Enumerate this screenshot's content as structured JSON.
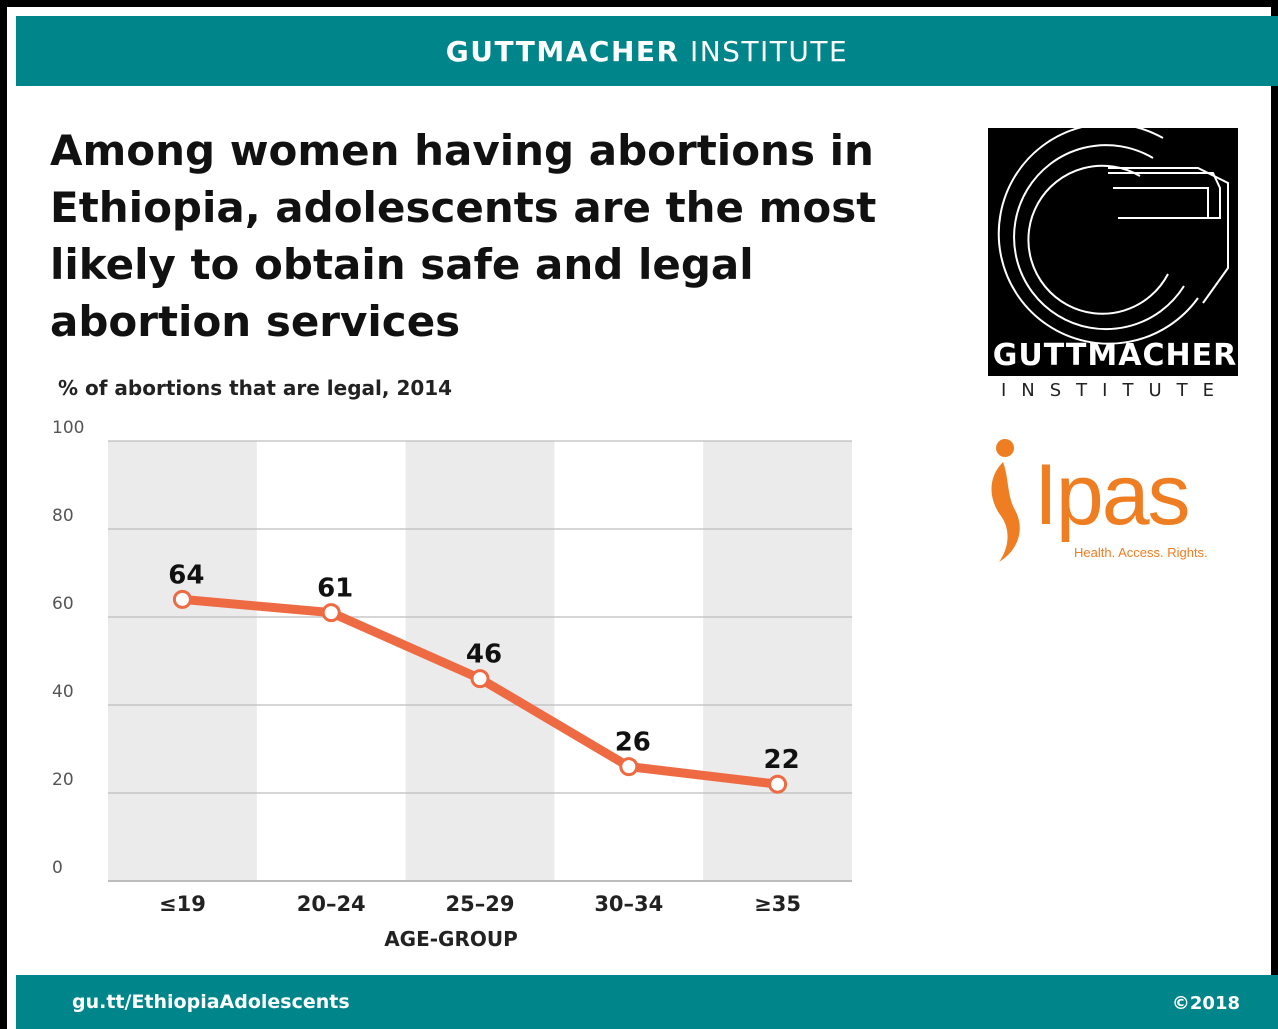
{
  "header": {
    "brand_bold": "GUTTMACHER",
    "brand_light": "INSTITUTE"
  },
  "headline": "Among women having abortions in Ethiopia, adolescents are the most likely to obtain safe and legal abortion services",
  "logos": {
    "guttmacher_word": "GUTTMACHER",
    "guttmacher_sub": "INSTITUTE",
    "ipas_word": "Ipas",
    "ipas_tagline": "Health. Access. Rights."
  },
  "footer": {
    "url": "gu.tt/EthiopiaAdolescents",
    "copyright": "©2018"
  },
  "colors": {
    "teal": "#00858a",
    "line": "#ee6a43",
    "band": "#ebebeb",
    "ipas_orange": "#ef7d22"
  },
  "chart_data": {
    "type": "line",
    "title": "",
    "subtitle": "% of abortions that are legal, 2014",
    "xlabel": "AGE-GROUP",
    "ylabel": "",
    "categories": [
      "≤19",
      "20–24",
      "25–29",
      "30–34",
      "≥35"
    ],
    "values": [
      64,
      61,
      46,
      26,
      22
    ],
    "data_labels": [
      "64",
      "61",
      "46",
      "26",
      "22"
    ],
    "ylim": [
      0,
      100
    ],
    "yticks": [
      0,
      20,
      40,
      60,
      80,
      100
    ],
    "ytick_labels": [
      "0",
      "20",
      "40",
      "60",
      "80",
      "100"
    ],
    "grid": true,
    "legend": "none"
  }
}
